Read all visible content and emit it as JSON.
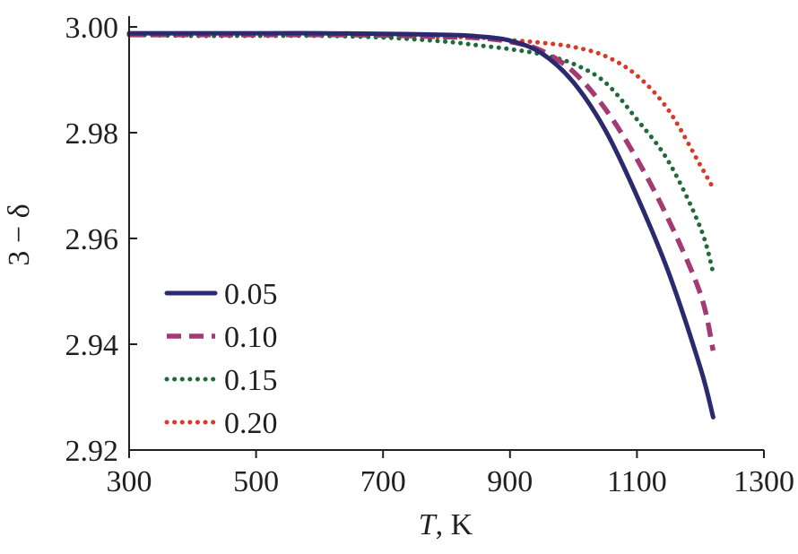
{
  "chart_data": {
    "type": "line",
    "title": "",
    "xlabel_var": "T",
    "xlabel_unit": ", K",
    "ylabel": "3 − δ",
    "xlim": [
      300,
      1300
    ],
    "ylim": [
      2.92,
      3.0
    ],
    "xticks": [
      300,
      500,
      700,
      900,
      1100,
      1300
    ],
    "yticks": [
      2.92,
      2.94,
      2.96,
      2.98,
      3.0
    ],
    "xtick_labels": [
      "300",
      "500",
      "700",
      "900",
      "1100",
      "1300"
    ],
    "ytick_labels": [
      "2.92",
      "2.94",
      "2.96",
      "2.98",
      "3.00"
    ],
    "legend_position": "bottom-left",
    "series": [
      {
        "name": "0.05",
        "color": "#2b2a6e",
        "style": "solid",
        "x": [
          300,
          400,
          500,
          600,
          700,
          800,
          850,
          900,
          950,
          1000,
          1050,
          1100,
          1150,
          1200,
          1220
        ],
        "y": [
          2.9988,
          2.9988,
          2.9988,
          2.9988,
          2.9987,
          2.9985,
          2.9982,
          2.9974,
          2.995,
          2.9895,
          2.9805,
          2.968,
          2.9535,
          2.9355,
          2.9262
        ]
      },
      {
        "name": "0.10",
        "color": "#a33b72",
        "style": "dashed",
        "x": [
          300,
          400,
          500,
          600,
          700,
          800,
          850,
          900,
          950,
          1000,
          1050,
          1100,
          1150,
          1200,
          1220
        ],
        "y": [
          2.9985,
          2.9985,
          2.9985,
          2.9985,
          2.9984,
          2.9981,
          2.9979,
          2.9972,
          2.9955,
          2.9915,
          2.9845,
          2.975,
          2.9635,
          2.9495,
          2.9388
        ]
      },
      {
        "name": "0.15",
        "color": "#1e6b3a",
        "style": "dotted",
        "x": [
          300,
          400,
          500,
          600,
          700,
          800,
          850,
          900,
          950,
          1000,
          1050,
          1100,
          1150,
          1200,
          1220
        ],
        "y": [
          2.9985,
          2.9983,
          2.9983,
          2.9983,
          2.998,
          2.9972,
          2.9965,
          2.9958,
          2.9948,
          2.993,
          2.9895,
          2.9825,
          2.9745,
          2.962,
          2.9535
        ]
      },
      {
        "name": "0.20",
        "color": "#d83a2a",
        "style": "dotted",
        "x": [
          300,
          400,
          500,
          600,
          700,
          800,
          850,
          900,
          950,
          1000,
          1050,
          1100,
          1150,
          1200,
          1220
        ],
        "y": [
          2.9985,
          2.9984,
          2.9984,
          2.9984,
          2.9983,
          2.9981,
          2.998,
          2.9975,
          2.997,
          2.9962,
          2.9945,
          2.9908,
          2.9842,
          2.9738,
          2.9695
        ]
      }
    ]
  }
}
